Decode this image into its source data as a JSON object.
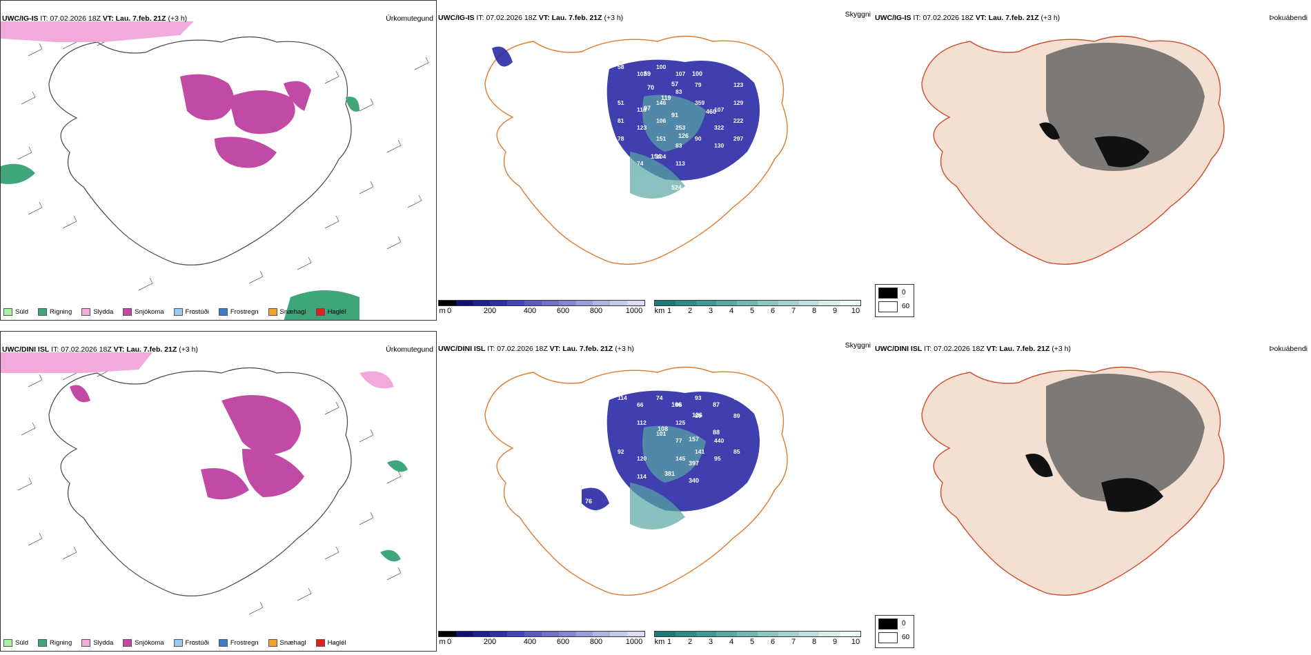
{
  "rows": [
    {
      "model": "UWC/IG-IS",
      "it_label": "IT:",
      "it_value": "07.02.2026 18Z",
      "vt_label": "VT:",
      "vt_value": "Lau. 7.feb. 21Z",
      "lead": "(+3 h)"
    },
    {
      "model": "UWC/DINI ISL",
      "it_label": "IT:",
      "it_value": "07.02.2026 18Z",
      "vt_label": "VT:",
      "vt_value": "Lau. 7.feb. 21Z",
      "lead": "(+3 h)"
    }
  ],
  "labels": {
    "precip_type": "Úrkomutegund",
    "visibility": "Skyggni",
    "fog": "Þokuábendi"
  },
  "precip_legend": [
    {
      "name": "Súld",
      "color": "#a9f0a4"
    },
    {
      "name": "Rigning",
      "color": "#3ea67a"
    },
    {
      "name": "Slydda",
      "color": "#f2a9dc"
    },
    {
      "name": "Snjókoma",
      "color": "#c04aa4"
    },
    {
      "name": "Frostúði",
      "color": "#9ec8f0"
    },
    {
      "name": "Frostregn",
      "color": "#3d7cc9"
    },
    {
      "name": "Snæhagl",
      "color": "#f0a12e"
    },
    {
      "name": "Haglél",
      "color": "#e0201c"
    }
  ],
  "ceiling_scale": {
    "unit": "m",
    "ticks": [
      "0",
      "200",
      "400",
      "600",
      "800",
      "1000"
    ],
    "colors": [
      "#000000",
      "#111178",
      "#1f1f9a",
      "#2e2eb0",
      "#4444b8",
      "#5a5ac0",
      "#7070c8",
      "#8686d0",
      "#9c9cd8",
      "#b2b2e0",
      "#c8c8e8",
      "#dcdcf0"
    ]
  },
  "visibility_scale": {
    "unit": "km",
    "ticks": [
      "1",
      "2",
      "3",
      "4",
      "5",
      "6",
      "7",
      "8",
      "9",
      "10"
    ],
    "colors": [
      "#1f7a76",
      "#2f8a86",
      "#3f9a96",
      "#5aa8a4",
      "#72b6b2",
      "#8cc4c0",
      "#a6d2ce",
      "#c0e0dc",
      "#d8ecea",
      "#f0f8f7"
    ]
  },
  "fog_legend": [
    {
      "value": "0",
      "color": "#000000"
    },
    {
      "value": "60",
      "color": "#ffffff"
    }
  ],
  "map_labels": {
    "row0": [
      "58",
      "102",
      "100",
      "107",
      "59",
      "57",
      "100",
      "70",
      "119",
      "97",
      "83",
      "79",
      "91",
      "123",
      "51",
      "118",
      "146",
      "460",
      "359",
      "107",
      "129",
      "81",
      "123",
      "106",
      "253",
      "126",
      "322",
      "222",
      "78",
      "154",
      "151",
      "83",
      "90",
      "130",
      "297",
      "152",
      "74",
      "104",
      "113",
      "524"
    ],
    "row1": [
      "114",
      "66",
      "74",
      "96",
      "93",
      "106",
      "79",
      "87",
      "112",
      "126",
      "125",
      "80",
      "108",
      "89",
      "157",
      "88",
      "101",
      "77",
      "397",
      "440",
      "381",
      "92",
      "120",
      "340",
      "145",
      "141",
      "95",
      "85",
      "76",
      "114"
    ]
  }
}
